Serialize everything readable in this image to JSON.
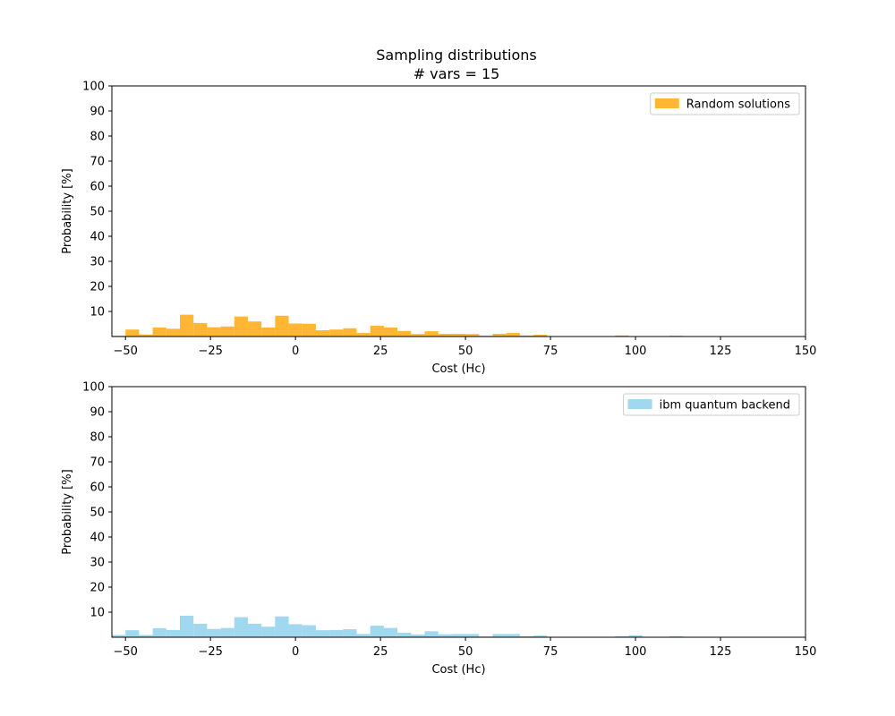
{
  "figure": {
    "title_line1": "Sampling distributions",
    "title_line2": "# vars = 15"
  },
  "chart_data": [
    {
      "type": "bar",
      "title": "Sampling distributions\n# vars = 15",
      "xlabel": "Cost (Hc)",
      "ylabel": "Probability [%]",
      "xlim": [
        -54,
        150
      ],
      "ylim": [
        0,
        100
      ],
      "xticks": [
        -50,
        -25,
        0,
        25,
        50,
        75,
        100,
        125,
        150
      ],
      "yticks": [
        10,
        20,
        30,
        40,
        50,
        60,
        70,
        80,
        90,
        100
      ],
      "legend_position": "top-right",
      "grid": false,
      "bin_width": 4,
      "series": [
        {
          "name": "Random solutions",
          "color": "#ffa500",
          "opacity": 0.8,
          "bins": [
            {
              "x": -54,
              "value": 0.3
            },
            {
              "x": -50,
              "value": 2.8
            },
            {
              "x": -46,
              "value": 0.8
            },
            {
              "x": -42,
              "value": 3.6
            },
            {
              "x": -38,
              "value": 3.1
            },
            {
              "x": -34,
              "value": 8.7
            },
            {
              "x": -30,
              "value": 5.4
            },
            {
              "x": -26,
              "value": 3.7
            },
            {
              "x": -22,
              "value": 4.0
            },
            {
              "x": -18,
              "value": 8.0
            },
            {
              "x": -14,
              "value": 6.0
            },
            {
              "x": -10,
              "value": 3.6
            },
            {
              "x": -6,
              "value": 8.3
            },
            {
              "x": -2,
              "value": 5.2
            },
            {
              "x": 2,
              "value": 5.1
            },
            {
              "x": 6,
              "value": 2.5
            },
            {
              "x": 10,
              "value": 2.8
            },
            {
              "x": 14,
              "value": 3.3
            },
            {
              "x": 18,
              "value": 1.4
            },
            {
              "x": 22,
              "value": 4.3
            },
            {
              "x": 26,
              "value": 3.6
            },
            {
              "x": 30,
              "value": 2.2
            },
            {
              "x": 34,
              "value": 1.0
            },
            {
              "x": 38,
              "value": 2.1
            },
            {
              "x": 42,
              "value": 1.1
            },
            {
              "x": 46,
              "value": 1.1
            },
            {
              "x": 50,
              "value": 1.0
            },
            {
              "x": 54,
              "value": 0.3
            },
            {
              "x": 58,
              "value": 1.1
            },
            {
              "x": 62,
              "value": 1.4
            },
            {
              "x": 66,
              "value": 0.4
            },
            {
              "x": 70,
              "value": 0.7
            },
            {
              "x": 94,
              "value": 0.4
            },
            {
              "x": 110,
              "value": 0.3
            }
          ]
        },
        {
          "name": "ibm quantum backend",
          "color": "#87ceeb",
          "opacity": 0.8,
          "bins": [
            {
              "x": -54,
              "value": 0.9
            },
            {
              "x": -50,
              "value": 2.8
            },
            {
              "x": -46,
              "value": 0.9
            },
            {
              "x": -42,
              "value": 3.6
            },
            {
              "x": -38,
              "value": 2.9
            },
            {
              "x": -34,
              "value": 8.6
            },
            {
              "x": -30,
              "value": 5.4
            },
            {
              "x": -26,
              "value": 3.3
            },
            {
              "x": -22,
              "value": 3.7
            },
            {
              "x": -18,
              "value": 8.0
            },
            {
              "x": -14,
              "value": 5.4
            },
            {
              "x": -10,
              "value": 4.2
            },
            {
              "x": -6,
              "value": 8.3
            },
            {
              "x": -2,
              "value": 5.2
            },
            {
              "x": 2,
              "value": 4.8
            },
            {
              "x": 6,
              "value": 2.8
            },
            {
              "x": 10,
              "value": 2.9
            },
            {
              "x": 14,
              "value": 3.2
            },
            {
              "x": 18,
              "value": 1.3
            },
            {
              "x": 22,
              "value": 4.6
            },
            {
              "x": 26,
              "value": 3.7
            },
            {
              "x": 30,
              "value": 1.8
            },
            {
              "x": 34,
              "value": 1.1
            },
            {
              "x": 38,
              "value": 2.4
            },
            {
              "x": 42,
              "value": 1.2
            },
            {
              "x": 46,
              "value": 1.3
            },
            {
              "x": 50,
              "value": 1.3
            },
            {
              "x": 54,
              "value": 0.3
            },
            {
              "x": 58,
              "value": 1.3
            },
            {
              "x": 62,
              "value": 1.3
            },
            {
              "x": 66,
              "value": 0.4
            },
            {
              "x": 70,
              "value": 0.7
            },
            {
              "x": 94,
              "value": 0.4
            },
            {
              "x": 98,
              "value": 0.8
            },
            {
              "x": 110,
              "value": 0.4
            }
          ]
        }
      ]
    },
    {
      "type": "bar",
      "xlabel": "Cost (Hc)",
      "ylabel": "Probability [%]"
    }
  ]
}
